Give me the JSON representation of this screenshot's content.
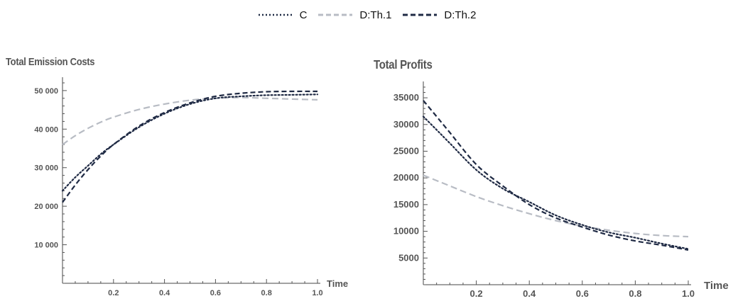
{
  "legend": [
    {
      "name": "C",
      "color": "#1f2a44",
      "dash": "dotted"
    },
    {
      "name": "D:Th.1",
      "color": "#b8bcc4",
      "dash": "dashed"
    },
    {
      "name": "D:Th.2",
      "color": "#1f2a44",
      "dash": "dashed"
    }
  ],
  "chart_data": [
    {
      "type": "line",
      "title": "Total Emission Costs",
      "xlabel": "Time",
      "ylabel": "",
      "xlim": [
        0,
        1.0
      ],
      "ylim": [
        0,
        52000
      ],
      "xticks": [
        0.2,
        0.4,
        0.6,
        0.8,
        1.0
      ],
      "xtick_labels": [
        "0.2",
        "0.4",
        "0.6",
        "0.8",
        "1.0"
      ],
      "yticks": [
        10000,
        20000,
        30000,
        40000,
        50000
      ],
      "ytick_labels": [
        "10 000",
        "20 000",
        "30 000",
        "40 000",
        "50 000"
      ],
      "grid": false,
      "legend_position": "top-center",
      "series": [
        {
          "name": "C",
          "x": [
            0,
            0.05,
            0.1,
            0.15,
            0.2,
            0.3,
            0.4,
            0.5,
            0.6,
            0.7,
            0.8,
            0.9,
            1.0
          ],
          "values": [
            24000,
            27500,
            30500,
            33500,
            36000,
            40500,
            44000,
            46500,
            48000,
            48500,
            48800,
            48900,
            49000
          ]
        },
        {
          "name": "D:Th.1",
          "x": [
            0,
            0.05,
            0.1,
            0.15,
            0.2,
            0.3,
            0.4,
            0.5,
            0.6,
            0.7,
            0.8,
            0.9,
            1.0
          ],
          "values": [
            36000,
            38300,
            40200,
            41800,
            43100,
            45100,
            46500,
            47500,
            48000,
            48200,
            48000,
            47800,
            47600
          ]
        },
        {
          "name": "D:Th.2",
          "x": [
            0,
            0.05,
            0.1,
            0.15,
            0.2,
            0.3,
            0.4,
            0.5,
            0.6,
            0.7,
            0.8,
            0.9,
            1.0
          ],
          "values": [
            21000,
            25500,
            29500,
            33000,
            36000,
            40800,
            44300,
            46800,
            48500,
            49300,
            49700,
            49800,
            49800
          ]
        }
      ]
    },
    {
      "type": "line",
      "title": "Total Profits",
      "xlabel": "Time",
      "ylabel": "",
      "xlim": [
        0,
        1.0
      ],
      "ylim": [
        0,
        37000
      ],
      "xticks": [
        0.2,
        0.4,
        0.6,
        0.8,
        1.0
      ],
      "xtick_labels": [
        "0.2",
        "0.4",
        "0.6",
        "0.8",
        "1.0"
      ],
      "yticks": [
        5000,
        10000,
        15000,
        20000,
        25000,
        30000,
        35000
      ],
      "ytick_labels": [
        "5000",
        "10000",
        "15000",
        "20000",
        "25000",
        "30000",
        "35000"
      ],
      "grid": false,
      "legend_position": "top-center",
      "series": [
        {
          "name": "C",
          "x": [
            0,
            0.05,
            0.1,
            0.2,
            0.3,
            0.4,
            0.5,
            0.6,
            0.7,
            0.8,
            0.9,
            1.0
          ],
          "values": [
            31500,
            29000,
            26500,
            21500,
            18000,
            15500,
            13000,
            11200,
            9800,
            8800,
            7700,
            6700
          ]
        },
        {
          "name": "D:Th.1",
          "x": [
            0,
            0.05,
            0.1,
            0.2,
            0.3,
            0.4,
            0.5,
            0.6,
            0.7,
            0.8,
            0.9,
            1.0
          ],
          "values": [
            20500,
            19500,
            18500,
            16500,
            14800,
            13300,
            12000,
            11000,
            10200,
            9600,
            9200,
            9000
          ]
        },
        {
          "name": "D:Th.2",
          "x": [
            0,
            0.05,
            0.1,
            0.2,
            0.3,
            0.4,
            0.5,
            0.6,
            0.7,
            0.8,
            0.9,
            1.0
          ],
          "values": [
            34500,
            31500,
            28500,
            22500,
            18500,
            15000,
            12500,
            10800,
            9300,
            8200,
            7400,
            6500
          ]
        }
      ]
    }
  ]
}
